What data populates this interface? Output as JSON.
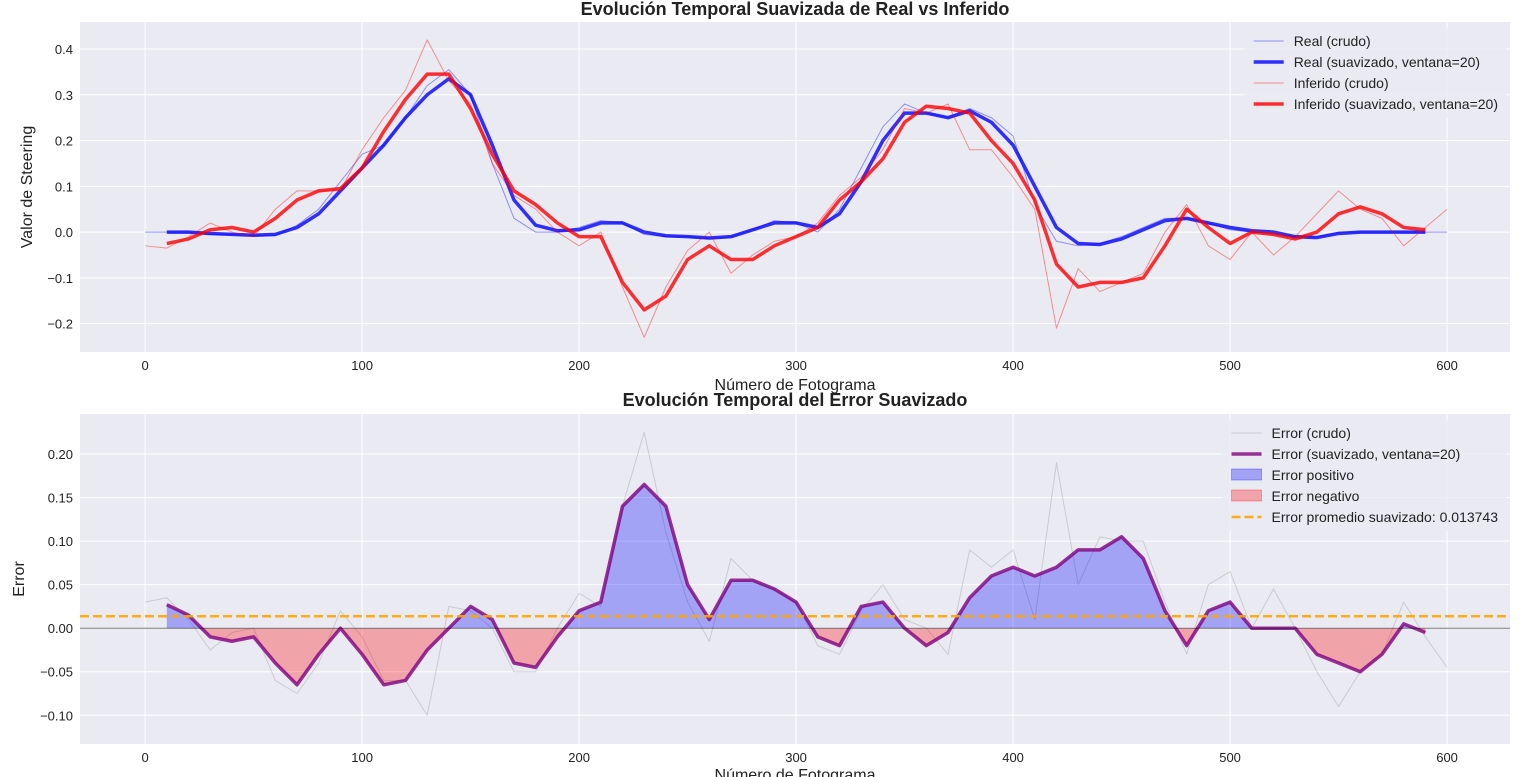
{
  "chart_data": [
    {
      "type": "line",
      "title": "Evolución Temporal Suavizada de Real vs Inferido",
      "xlabel": "Número de Fotograma",
      "ylabel": "Valor de Steering",
      "x": [
        0,
        10,
        20,
        30,
        40,
        50,
        60,
        70,
        80,
        90,
        100,
        110,
        120,
        130,
        140,
        150,
        160,
        170,
        180,
        190,
        200,
        210,
        220,
        230,
        240,
        250,
        260,
        270,
        280,
        290,
        300,
        310,
        320,
        330,
        340,
        350,
        360,
        370,
        380,
        390,
        400,
        410,
        420,
        430,
        440,
        450,
        460,
        470,
        480,
        490,
        500,
        510,
        520,
        530,
        540,
        550,
        560,
        570,
        580,
        590,
        600
      ],
      "xlim": [
        -30,
        629
      ],
      "ylim": [
        -0.262,
        0.459
      ],
      "xticks": [
        0,
        100,
        200,
        300,
        400,
        500,
        600
      ],
      "yticks": [
        {
          "value": -0.2,
          "label": "−0.2"
        },
        {
          "value": -0.1,
          "label": "−0.1"
        },
        {
          "value": 0,
          "label": "0.0"
        },
        0.1,
        0.2,
        0.3,
        0.4
      ],
      "grid": true,
      "legend": "upper right",
      "series": [
        {
          "name": "Real (crudo)",
          "color": "blue",
          "alpha": 0.4,
          "width": 1,
          "values": [
            0.0,
            0.0,
            0.0,
            -0.005,
            -0.005,
            -0.008,
            -0.008,
            0.015,
            0.05,
            0.11,
            0.17,
            0.19,
            0.25,
            0.32,
            0.355,
            0.3,
            0.15,
            0.03,
            0.0,
            0.0,
            0.01,
            0.025,
            0.02,
            -0.005,
            -0.01,
            -0.01,
            -0.015,
            -0.01,
            0.005,
            0.025,
            0.02,
            0.0,
            0.05,
            0.14,
            0.23,
            0.28,
            0.26,
            0.25,
            0.27,
            0.25,
            0.21,
            0.06,
            -0.02,
            -0.03,
            -0.025,
            -0.01,
            0.01,
            0.03,
            0.03,
            0.02,
            0.005,
            0.0,
            -0.005,
            -0.01,
            -0.01,
            0.0,
            0.0,
            0.0,
            0.0,
            0.0,
            0.0
          ]
        },
        {
          "name": "Real (suavizado, ventana=20)",
          "color": "blue",
          "alpha": 0.8,
          "width": 3.5,
          "values": [
            null,
            0.0,
            0.0,
            -0.003,
            -0.005,
            -0.007,
            -0.005,
            0.01,
            0.04,
            0.09,
            0.14,
            0.19,
            0.25,
            0.3,
            0.335,
            0.3,
            0.19,
            0.07,
            0.015,
            0.003,
            0.005,
            0.02,
            0.02,
            0.0,
            -0.008,
            -0.01,
            -0.013,
            -0.01,
            0.005,
            0.02,
            0.02,
            0.01,
            0.04,
            0.11,
            0.2,
            0.26,
            0.26,
            0.25,
            0.265,
            0.24,
            0.19,
            0.1,
            0.01,
            -0.025,
            -0.027,
            -0.015,
            0.005,
            0.025,
            0.03,
            0.02,
            0.01,
            0.003,
            0.0,
            -0.01,
            -0.012,
            -0.003,
            0.0,
            0.0,
            0.0,
            0.0,
            null
          ]
        },
        {
          "name": "Inferido (crudo)",
          "color": "red",
          "alpha": 0.4,
          "width": 1,
          "values": [
            -0.03,
            -0.035,
            -0.01,
            0.02,
            0.0,
            -0.01,
            0.05,
            0.09,
            0.09,
            0.09,
            0.18,
            0.25,
            0.31,
            0.42,
            0.33,
            0.28,
            0.15,
            0.08,
            0.05,
            0.0,
            -0.03,
            0.0,
            -0.12,
            -0.23,
            -0.12,
            -0.04,
            0.0,
            -0.09,
            -0.05,
            -0.02,
            -0.01,
            0.02,
            0.08,
            0.12,
            0.18,
            0.27,
            0.26,
            0.28,
            0.18,
            0.18,
            0.12,
            0.05,
            -0.21,
            -0.08,
            -0.13,
            -0.11,
            -0.09,
            0.0,
            0.06,
            -0.03,
            -0.06,
            0.0,
            -0.05,
            -0.01,
            0.04,
            0.09,
            0.05,
            0.03,
            -0.03,
            0.01,
            0.05
          ]
        },
        {
          "name": "Inferido (suavizado, ventana=20)",
          "color": "red",
          "alpha": 0.8,
          "width": 3.5,
          "values": [
            null,
            -0.025,
            -0.015,
            0.005,
            0.01,
            0.0,
            0.03,
            0.07,
            0.09,
            0.095,
            0.14,
            0.22,
            0.29,
            0.345,
            0.345,
            0.27,
            0.17,
            0.09,
            0.06,
            0.02,
            -0.01,
            -0.01,
            -0.11,
            -0.17,
            -0.14,
            -0.06,
            -0.03,
            -0.06,
            -0.06,
            -0.03,
            -0.01,
            0.01,
            0.07,
            0.11,
            0.16,
            0.24,
            0.275,
            0.27,
            0.26,
            0.2,
            0.15,
            0.07,
            -0.07,
            -0.12,
            -0.11,
            -0.11,
            -0.1,
            -0.03,
            0.05,
            0.01,
            -0.025,
            0.0,
            -0.005,
            -0.015,
            0.0,
            0.04,
            0.055,
            0.04,
            0.01,
            0.005,
            null
          ]
        }
      ]
    },
    {
      "type": "line",
      "title": "Evolución Temporal del Error Suavizado",
      "xlabel": "Número de Fotograma",
      "ylabel": "Error",
      "x": [
        0,
        10,
        20,
        30,
        40,
        50,
        60,
        70,
        80,
        90,
        100,
        110,
        120,
        130,
        140,
        150,
        160,
        170,
        180,
        190,
        200,
        210,
        220,
        230,
        240,
        250,
        260,
        270,
        280,
        290,
        300,
        310,
        320,
        330,
        340,
        350,
        360,
        370,
        380,
        390,
        400,
        410,
        420,
        430,
        440,
        450,
        460,
        470,
        480,
        490,
        500,
        510,
        520,
        530,
        540,
        550,
        560,
        570,
        580,
        590,
        600
      ],
      "xlim": [
        -30,
        629
      ],
      "ylim": [
        -0.133,
        0.246
      ],
      "xticks": [
        0,
        100,
        200,
        300,
        400,
        500,
        600
      ],
      "yticks": [
        {
          "value": -0.1,
          "label": "−0.10"
        },
        {
          "value": -0.05,
          "label": "−0.05"
        },
        {
          "value": 0,
          "label": "0.00"
        },
        0.05,
        {
          "value": 0.1,
          "label": "0.10"
        },
        0.15,
        {
          "value": 0.2,
          "label": "0.20"
        }
      ],
      "grid": true,
      "legend": "upper right",
      "series": [
        {
          "name": "Error (crudo)",
          "color": "gray",
          "alpha": 0.3,
          "width": 1,
          "values": [
            0.03,
            0.035,
            0.01,
            -0.025,
            -0.005,
            0.0,
            -0.06,
            -0.075,
            -0.04,
            0.02,
            -0.01,
            -0.06,
            -0.06,
            -0.1,
            0.025,
            0.02,
            0.0,
            -0.05,
            -0.05,
            0.0,
            0.04,
            0.025,
            0.14,
            0.225,
            0.11,
            0.03,
            -0.015,
            0.08,
            0.055,
            0.045,
            0.03,
            -0.02,
            -0.03,
            0.02,
            0.05,
            0.01,
            0.0,
            -0.03,
            0.09,
            0.07,
            0.09,
            0.01,
            0.19,
            0.05,
            0.105,
            0.1,
            0.1,
            0.03,
            -0.03,
            0.05,
            0.065,
            0.0,
            0.045,
            0.0,
            -0.05,
            -0.09,
            -0.05,
            -0.03,
            0.03,
            -0.01,
            -0.045
          ]
        },
        {
          "name": "Error (suavizado, ventana=20)",
          "color": "purple",
          "alpha": 0.8,
          "width": 3.5,
          "fill_positive": {
            "name": "Error positivo",
            "color": "blue",
            "alpha": 0.3
          },
          "fill_negative": {
            "name": "Error negativo",
            "color": "red",
            "alpha": 0.3
          },
          "values": [
            null,
            0.027,
            0.015,
            -0.01,
            -0.015,
            -0.01,
            -0.04,
            -0.065,
            -0.03,
            0.0,
            -0.03,
            -0.065,
            -0.06,
            -0.025,
            0.0,
            0.025,
            0.01,
            -0.04,
            -0.045,
            -0.01,
            0.02,
            0.03,
            0.14,
            0.165,
            0.14,
            0.05,
            0.01,
            0.055,
            0.055,
            0.045,
            0.03,
            -0.01,
            -0.02,
            0.025,
            0.03,
            0.0,
            -0.02,
            -0.005,
            0.035,
            0.06,
            0.07,
            0.06,
            0.07,
            0.09,
            0.09,
            0.105,
            0.08,
            0.02,
            -0.02,
            0.02,
            0.03,
            0.0,
            0.0,
            0.0,
            -0.03,
            -0.04,
            -0.05,
            -0.03,
            0.005,
            -0.005,
            null
          ]
        }
      ],
      "hlines": [
        {
          "value": 0,
          "color": "black",
          "alpha": 0.5,
          "width": 1
        },
        {
          "name": "Error promedio suavizado: 0.013743",
          "value": 0.013743,
          "color": "orange",
          "alpha": 0.9,
          "width": 2.5,
          "dash": true
        }
      ]
    }
  ]
}
